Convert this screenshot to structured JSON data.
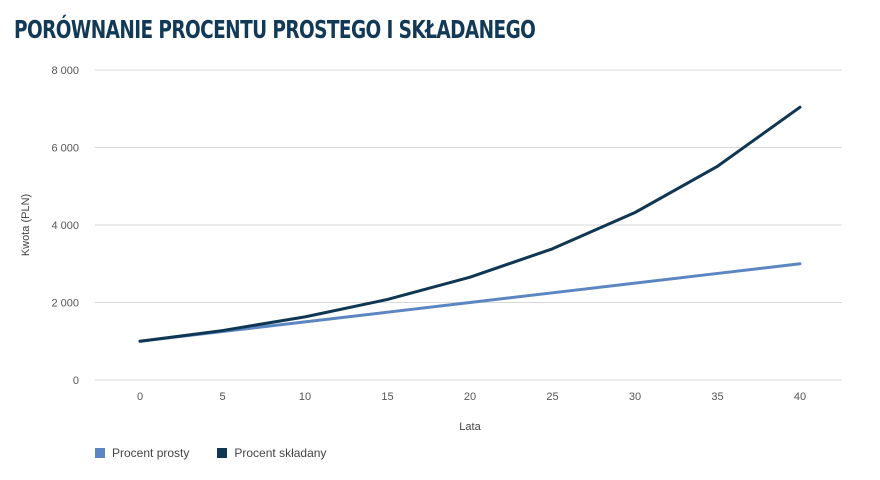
{
  "chart_data": {
    "type": "line",
    "title": "PORÓWNANIE PROCENTU PROSTEGO I SKŁADANEGO",
    "xlabel": "Lata",
    "ylabel": "Kwota (PLN)",
    "x": [
      0,
      5,
      10,
      15,
      20,
      25,
      30,
      35,
      40
    ],
    "x_tick_labels": [
      "0",
      "5",
      "10",
      "15",
      "20",
      "25",
      "30",
      "35",
      "40"
    ],
    "ylim": [
      0,
      8000
    ],
    "y_ticks": [
      0,
      2000,
      4000,
      6000,
      8000
    ],
    "y_tick_labels": [
      "0",
      "2 000",
      "4 000",
      "6 000",
      "8 000"
    ],
    "grid": "horizontal",
    "legend_position": "bottom-left",
    "series": [
      {
        "name": "Procent prosty",
        "color": "#5b86c2",
        "values": [
          1000,
          1250,
          1500,
          1750,
          2000,
          2250,
          2500,
          2750,
          3000
        ]
      },
      {
        "name": "Procent składany",
        "color": "#0f3653",
        "values": [
          1000,
          1276,
          1629,
          2079,
          2653,
          3386,
          4322,
          5516,
          7040
        ]
      }
    ]
  }
}
